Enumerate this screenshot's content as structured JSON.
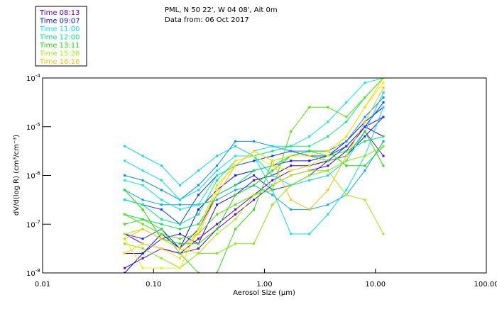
{
  "chart_data": {
    "type": "line",
    "title_lines": [
      "PML, N 50 22', W 04 08', Alt 0m",
      "Data from: 06 Oct 2017"
    ],
    "xlabel": "Aerosol Size (μm)",
    "ylabel": "dV/d(log R) (cm³/cm⁻³)",
    "x_scale": "log",
    "y_scale": "log",
    "xlim": [
      0.01,
      100
    ],
    "ylim_log10": [
      -8,
      -4
    ],
    "x_ticks": [
      {
        "value": 0.01,
        "label": "0.01"
      },
      {
        "value": 0.1,
        "label": "0.10"
      },
      {
        "value": 1,
        "label": "1.00"
      },
      {
        "value": 10,
        "label": "10.00"
      },
      {
        "value": 100,
        "label": "100.00"
      }
    ],
    "y_ticks": [
      {
        "exp": -4,
        "base": "10",
        "sup": "-4"
      },
      {
        "exp": -5,
        "base": "10",
        "sup": "-5"
      },
      {
        "exp": -6,
        "base": "10",
        "sup": "-6"
      },
      {
        "exp": -7,
        "base": "10",
        "sup": "-7"
      },
      {
        "exp": -8,
        "base": "10",
        "sup": "-8"
      }
    ],
    "legend": {
      "placement": "top-left-outside",
      "entries": [
        {
          "label": "Time 08:13",
          "color": "#6400c8"
        },
        {
          "label": "Time 09:07",
          "color": "#0010ff"
        },
        {
          "label": "Time 11:00",
          "color": "#00e4ff"
        },
        {
          "label": "Time 12:00",
          "color": "#00f080"
        },
        {
          "label": "Time 13:11",
          "color": "#18e000"
        },
        {
          "label": "Time 15:28",
          "color": "#a0f000"
        },
        {
          "label": "Time 16:16",
          "color": "#ffc000"
        }
      ]
    },
    "x": [
      0.055,
      0.08,
      0.118,
      0.173,
      0.254,
      0.373,
      0.547,
      0.803,
      1.18,
      1.73,
      2.54,
      3.73,
      5.47,
      8.03,
      11.8
    ],
    "series_note": "y values given as log10 of dV/d(log R)",
    "series": [
      {
        "color": "#6400c8",
        "y_log10": [
          -7.9,
          -7.7,
          -7.5,
          -7.6,
          -7.3,
          -7.0,
          -6.7,
          -6.4,
          -6.1,
          -5.9,
          -5.8,
          -5.7,
          -5.6,
          -5.1,
          -5.6
        ]
      },
      {
        "color": "#5a00d0",
        "y_log10": [
          -7.2,
          -7.4,
          -7.5,
          -7.6,
          -7.5,
          -7.1,
          -6.8,
          -6.5,
          -6.2,
          -6.0,
          -5.9,
          -5.8,
          -5.5,
          -5.0,
          -4.8
        ]
      },
      {
        "color": "#4000e0",
        "y_log10": [
          -7.6,
          -7.6,
          -7.3,
          -7.2,
          -7.4,
          -6.6,
          -6.4,
          -6.1,
          -6.0,
          -5.8,
          -5.8,
          -5.7,
          -5.4,
          -5.0,
          -5.2
        ]
      },
      {
        "color": "#0010ff",
        "y_log10": [
          -8.0,
          -7.6,
          -7.2,
          -7.5,
          -6.7,
          -6.3,
          -6.0,
          -5.9,
          -5.8,
          -5.7,
          -5.7,
          -5.6,
          -5.3,
          -4.9,
          -4.6
        ]
      },
      {
        "color": "#0040ff",
        "y_log10": [
          -6.5,
          -6.6,
          -6.7,
          -7.0,
          -6.4,
          -6.0,
          -5.8,
          -5.7,
          -5.6,
          -5.5,
          -5.6,
          -5.6,
          -5.4,
          -5.0,
          -4.5
        ]
      },
      {
        "color": "#1030ff",
        "y_log10": [
          -7.2,
          -7.3,
          -7.1,
          -7.5,
          -7.1,
          -6.4,
          -6.2,
          -6.0,
          -6.3,
          -6.2,
          -6.0,
          -5.7,
          -5.6,
          -5.2,
          -4.8
        ]
      },
      {
        "color": "#0090ff",
        "y_log10": [
          -6.0,
          -6.1,
          -6.3,
          -6.5,
          -6.2,
          -5.8,
          -5.3,
          -5.3,
          -5.4,
          -5.5,
          -5.5,
          -5.5,
          -5.3,
          -4.8,
          -4.4
        ]
      },
      {
        "color": "#00a8ff",
        "y_log10": [
          -6.3,
          -6.5,
          -6.6,
          -6.6,
          -6.6,
          -6.5,
          -6.3,
          -6.2,
          -6.4,
          -6.7,
          -6.7,
          -6.6,
          -6.4,
          -5.9,
          -5.3
        ]
      },
      {
        "color": "#00d8ff",
        "y_log10": [
          -5.4,
          -5.6,
          -5.8,
          -6.2,
          -5.9,
          -5.6,
          -5.4,
          -5.6,
          -6.0,
          -6.2,
          -6.1,
          -6.0,
          -5.7,
          -5.1,
          -4.3
        ]
      },
      {
        "color": "#00e4ff",
        "y_log10": [
          -5.7,
          -5.9,
          -6.1,
          -6.5,
          -6.3,
          -5.9,
          -5.6,
          -5.6,
          -6.3,
          -7.2,
          -7.2,
          -6.8,
          -6.3,
          -5.6,
          -4.6
        ]
      },
      {
        "color": "#00f0d0",
        "y_log10": [
          -6.1,
          -6.2,
          -6.5,
          -6.7,
          -6.6,
          -6.0,
          -5.8,
          -5.5,
          -5.4,
          -5.4,
          -5.2,
          -4.9,
          -4.5,
          -4.1,
          -4.0
        ]
      },
      {
        "color": "#00f080",
        "y_log10": [
          -6.5,
          -6.6,
          -6.9,
          -7.0,
          -6.8,
          -6.1,
          -5.7,
          -5.6,
          -5.5,
          -5.4,
          -5.4,
          -5.2,
          -4.9,
          -4.4,
          -4.0
        ]
      },
      {
        "color": "#00e860",
        "y_log10": [
          -6.8,
          -6.9,
          -7.0,
          -7.1,
          -7.0,
          -6.4,
          -6.2,
          -5.9,
          -5.8,
          -5.6,
          -5.5,
          -5.6,
          -5.5,
          -5.3,
          -5.2
        ]
      },
      {
        "color": "#18e000",
        "y_log10": [
          -6.3,
          -6.7,
          -7.3,
          -7.4,
          -7.4,
          -7.1,
          -6.4,
          -6.2,
          -5.9,
          -5.6,
          -5.5,
          -5.5,
          -5.8,
          -5.8,
          -5.4
        ]
      },
      {
        "color": "#30e010",
        "y_log10": [
          -7.0,
          -6.9,
          -7.1,
          -7.6,
          -8.0,
          -8.0,
          -7.1,
          -6.7,
          -5.7,
          -5.6,
          -5.6,
          -5.7,
          -5.6,
          -5.1,
          -5.8
        ]
      },
      {
        "color": "#50e800",
        "y_log10": [
          -6.8,
          -7.0,
          -7.2,
          -7.3,
          -7.2,
          -6.8,
          -6.6,
          -6.4,
          -6.3,
          -5.1,
          -4.6,
          -4.6,
          -4.8,
          -4.4,
          -4.0
        ]
      },
      {
        "color": "#a0f000",
        "y_log10": [
          -7.2,
          -7.1,
          -7.3,
          -7.5,
          -7.6,
          -7.2,
          -6.9,
          -6.4,
          -6.2,
          -6.0,
          -5.9,
          -5.9,
          -6.4,
          -6.5,
          -7.2
        ]
      },
      {
        "color": "#80f000",
        "y_log10": [
          -7.4,
          -7.5,
          -7.7,
          -7.9,
          -7.6,
          -7.6,
          -7.4,
          -7.4,
          -6.6,
          -6.2,
          -6.0,
          -5.9,
          -5.7,
          -5.6,
          -5.4
        ]
      },
      {
        "color": "#f0f000",
        "y_log10": [
          -7.3,
          -7.9,
          -7.9,
          -7.9,
          -7.1,
          -6.3,
          -5.7,
          -5.6,
          -5.8,
          -5.9,
          -5.8,
          -5.6,
          -5.2,
          -4.6,
          -4.1
        ]
      },
      {
        "color": "#ffc000",
        "y_log10": [
          -7.3,
          -7.1,
          -7.3,
          -7.5,
          -7.2,
          -6.4,
          -5.8,
          -5.5,
          -5.7,
          -6.5,
          -6.7,
          -6.3,
          -5.6,
          -4.9,
          -4.2
        ]
      },
      {
        "color": "#ffd800",
        "y_log10": [
          -7.6,
          -7.4,
          -7.5,
          -7.7,
          -7.1,
          -6.2,
          -5.8,
          -5.5,
          -5.7,
          -5.6,
          -5.6,
          -5.5,
          -5.2,
          -4.6,
          -4.0
        ]
      }
    ]
  }
}
